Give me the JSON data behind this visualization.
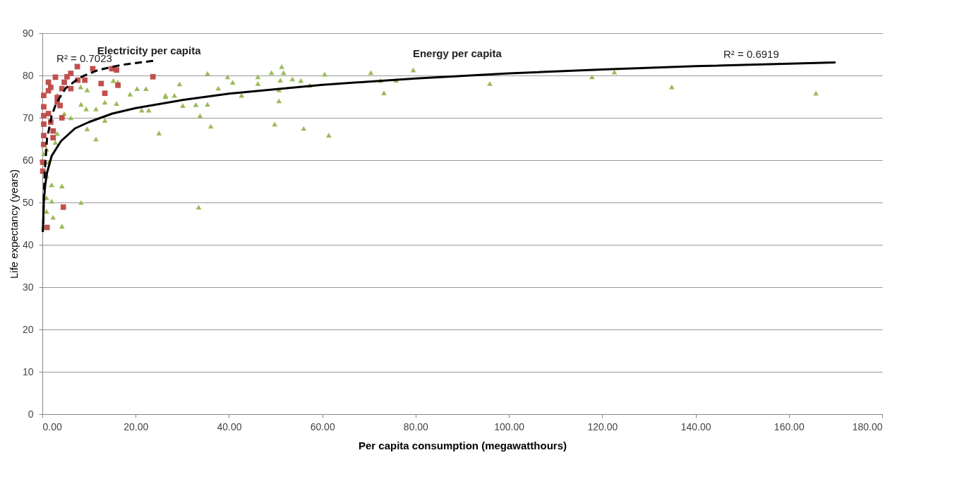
{
  "chart_data": {
    "type": "scatter",
    "xlabel": "Per capita consumption (megawatthours)",
    "ylabel": "Life expectancy (years)",
    "xlim": [
      0,
      180
    ],
    "xticks": [
      {
        "value": 0,
        "label": "0.00"
      },
      {
        "value": 20,
        "label": "20.00"
      },
      {
        "value": 40,
        "label": "40.00"
      },
      {
        "value": 60,
        "label": "60.00"
      },
      {
        "value": 80,
        "label": "80.00"
      },
      {
        "value": 100,
        "label": "100.00"
      },
      {
        "value": 120,
        "label": "120.00"
      },
      {
        "value": 140,
        "label": "140.00"
      },
      {
        "value": 160,
        "label": "160.00"
      },
      {
        "value": 180,
        "label": "180.00"
      }
    ],
    "ylim": [
      0,
      90
    ],
    "yticks": [
      0,
      10,
      20,
      30,
      40,
      50,
      60,
      70,
      80,
      90
    ],
    "grid": "y",
    "series": [
      {
        "marker": "triangle",
        "color": "#9bbb59",
        "x": [
          35.4,
          29.4,
          39.7,
          40.8,
          37.7,
          28.3,
          26.4,
          30.1,
          32.9,
          35.4,
          33.8,
          36.1,
          33.5,
          46.2,
          46.2,
          49.1,
          51.3,
          51.7,
          51.0,
          53.6,
          55.4,
          57.3,
          50.7,
          50.7,
          42.7,
          49.8,
          56.0,
          61.4,
          60.5,
          70.4,
          72.5,
          73.2,
          75.8,
          79.5,
          95.9,
          117.8,
          122.6,
          134.9,
          165.8,
          15.2,
          16.2,
          20.3,
          22.2,
          18.8,
          26.4,
          9.6,
          13.4,
          15.9,
          8.3,
          9.4,
          4.7,
          6.1,
          11.5,
          21.3,
          22.8,
          9.6,
          13.4,
          11.5,
          25.0,
          3.2,
          2.8,
          0.9,
          1.3,
          2.0,
          4.2,
          0.9,
          8.3,
          2.0,
          0.9,
          2.3,
          4.2,
          0.3,
          0.9,
          0.3,
          3.2,
          8.2
        ],
        "values": [
          80.5,
          78.0,
          79.7,
          78.4,
          77.0,
          75.3,
          75.0,
          72.9,
          73.1,
          73.2,
          70.5,
          68.0,
          48.9,
          79.7,
          78.1,
          80.7,
          82.1,
          80.7,
          78.9,
          79.2,
          78.8,
          77.7,
          76.6,
          74.0,
          75.3,
          68.5,
          67.5,
          65.9,
          80.3,
          80.7,
          78.8,
          75.9,
          78.9,
          81.3,
          78.1,
          79.7,
          80.8,
          77.3,
          75.8,
          78.8,
          78.4,
          76.9,
          76.9,
          75.6,
          75.3,
          76.6,
          73.7,
          73.4,
          73.2,
          72.1,
          71.0,
          70.0,
          72.1,
          71.8,
          71.8,
          67.4,
          69.4,
          65.0,
          66.4,
          66.3,
          64.2,
          62.6,
          59.5,
          54.2,
          53.9,
          51.1,
          50.0,
          50.3,
          47.9,
          46.5,
          44.4,
          44.1,
          56.3,
          61.5,
          75.3,
          77.3
        ]
      },
      {
        "marker": "square",
        "color": "#c0504d",
        "x": [
          7.5,
          10.8,
          15.9,
          14.9,
          23.7,
          6.1,
          5.3,
          4.7,
          7.6,
          9.1,
          12.6,
          16.2,
          13.4,
          1.3,
          1.8,
          4.2,
          6.1,
          0.3,
          3.2,
          0.3,
          1.3,
          3.8,
          4.2,
          1.8,
          0.3,
          2.3,
          2.3,
          0.3,
          0.3,
          0.1,
          0.1,
          4.5,
          1.0,
          3.2,
          1.3,
          2.8,
          0.3
        ],
        "values": [
          82.1,
          81.6,
          81.3,
          81.6,
          79.7,
          80.5,
          79.7,
          78.4,
          78.9,
          78.9,
          78.1,
          77.7,
          75.8,
          78.4,
          77.2,
          76.9,
          76.9,
          75.3,
          73.7,
          72.6,
          71.0,
          72.9,
          70.0,
          69.0,
          68.5,
          66.9,
          65.3,
          65.8,
          63.7,
          59.5,
          57.4,
          48.9,
          44.1,
          74.8,
          76.4,
          79.6,
          70.5
        ]
      },
      {
        "type": "line",
        "line_style": "solid",
        "color": "#000000",
        "x": [
          0.1,
          0.3,
          0.6,
          1,
          2,
          4,
          7,
          10,
          15,
          20,
          30,
          40,
          60,
          80,
          100,
          120,
          140,
          170
        ],
        "values": [
          43,
          50,
          54,
          57,
          61,
          64.5,
          67.5,
          69,
          71,
          72.3,
          74.2,
          75.7,
          77.8,
          79.3,
          80.5,
          81.4,
          82.2,
          83.1
        ]
      },
      {
        "type": "line",
        "line_style": "dashed",
        "color": "#000000",
        "x": [
          0.2,
          0.3,
          0.5,
          1,
          2,
          3,
          5,
          8,
          12,
          17,
          24
        ],
        "values": [
          45,
          51,
          57,
          65,
          70.5,
          73.5,
          77,
          79.5,
          81.3,
          82.5,
          83.5
        ]
      }
    ],
    "annotations": [
      "Electricity per capita",
      "Energy per capita",
      "R² = 0.7023",
      "R² = 0.6919"
    ]
  }
}
